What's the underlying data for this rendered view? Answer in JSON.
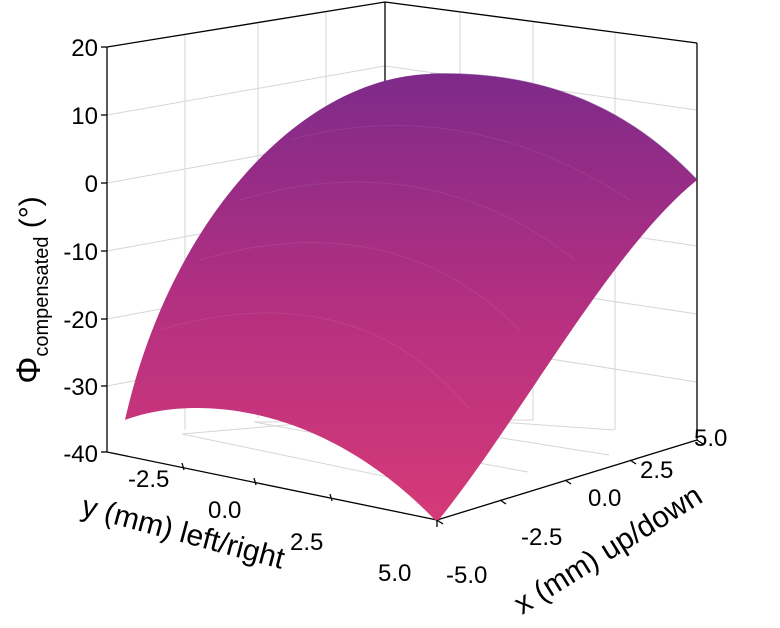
{
  "chart_data": {
    "type": "surface3d",
    "title": "",
    "zlabel": {
      "main": "Φ",
      "subscript": "compensated",
      "unit": "(°)"
    },
    "ylabel": "y (mm) left/right",
    "xlabel": "x (mm) up/down",
    "zlim": [
      -40,
      20
    ],
    "ylim": [
      -5,
      5
    ],
    "xlim": [
      -5,
      5
    ],
    "z_ticks": [
      "20",
      "10",
      "0",
      "-10",
      "-20",
      "-30",
      "-40"
    ],
    "y_ticks": [
      "-2.5",
      "0.0",
      "2.5",
      "5.0"
    ],
    "x_ticks": [
      "-5.0",
      "-2.5",
      "0.0",
      "2.5",
      "5.0"
    ],
    "grid": true,
    "surface": {
      "description_values": [
        {
          "x": -5,
          "y": -5,
          "z": -36
        },
        {
          "x": -5,
          "y": 0,
          "z": -20
        },
        {
          "x": -5,
          "y": 5,
          "z": -38
        },
        {
          "x": 5,
          "y": -5,
          "z": 0
        },
        {
          "x": 5,
          "y": 0,
          "z": 16
        },
        {
          "x": 5,
          "y": 5,
          "z": 0
        }
      ],
      "colors": {
        "low": "#d63a77",
        "mid": "#b12f80",
        "high": "#7e2a8a"
      }
    }
  }
}
